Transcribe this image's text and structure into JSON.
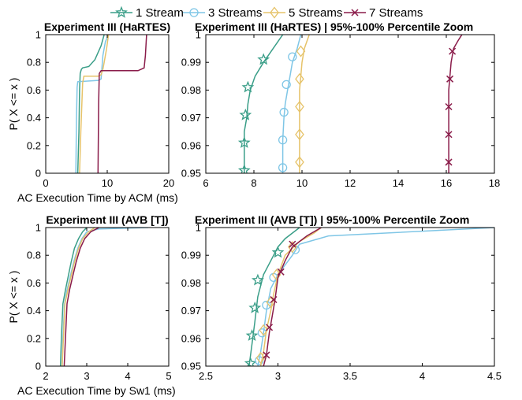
{
  "legend": {
    "entries": [
      {
        "name": "1 Stream",
        "color": "#3a9e88",
        "marker": "star"
      },
      {
        "name": "3 Streams",
        "color": "#7fc6e6",
        "marker": "circle"
      },
      {
        "name": "5 Streams",
        "color": "#e6c36a",
        "marker": "diamond"
      },
      {
        "name": "7 Streams",
        "color": "#8a1c4a",
        "marker": "x"
      }
    ]
  },
  "chart_data": [
    {
      "type": "line",
      "title": "Experiment III (HaRTES)",
      "xlabel": "AC Execution Time by ACM (ms)",
      "ylabel": "P( X <= x )",
      "xlim": [
        0,
        20
      ],
      "ylim": [
        0,
        1
      ],
      "xticks": [
        "0",
        "10",
        "20"
      ],
      "yticks": [
        "0",
        "0.2",
        "0.4",
        "0.6",
        "0.8",
        "1"
      ],
      "series": [
        {
          "name": "1 Stream",
          "x": [
            5.2,
            5.4,
            5.5,
            5.6,
            5.8,
            6.0,
            7.0,
            8.0,
            9.0,
            9.5
          ],
          "y": [
            0,
            0.3,
            0.6,
            0.72,
            0.75,
            0.76,
            0.77,
            0.82,
            0.92,
            1.0
          ]
        },
        {
          "name": "3 Streams",
          "x": [
            4.9,
            5.0,
            5.1,
            5.2,
            8.5,
            9.0,
            9.3,
            9.7,
            10.2
          ],
          "y": [
            0,
            0.4,
            0.62,
            0.66,
            0.67,
            0.68,
            0.85,
            0.95,
            1.0
          ]
        },
        {
          "name": "5 Streams",
          "x": [
            5.5,
            5.7,
            6.0,
            6.2,
            8.5,
            9.0,
            9.3,
            9.5,
            9.9,
            10.2
          ],
          "y": [
            0,
            0.3,
            0.65,
            0.7,
            0.7,
            0.71,
            0.75,
            0.8,
            0.9,
            1.0
          ]
        },
        {
          "name": "7 Streams",
          "x": [
            8.5,
            8.6,
            8.7,
            9.0,
            15.0,
            16.0,
            16.2,
            16.4
          ],
          "y": [
            0,
            0.5,
            0.72,
            0.74,
            0.74,
            0.76,
            0.85,
            1.0
          ]
        }
      ]
    },
    {
      "type": "line",
      "title": "Experiment III (HaRTES) | 95%-100% Percentile Zoom",
      "xlabel": "",
      "ylabel": "",
      "xlim": [
        6,
        18
      ],
      "ylim": [
        0.95,
        1
      ],
      "xticks": [
        "6",
        "8",
        "10",
        "12",
        "14",
        "16",
        "18"
      ],
      "yticks": [
        "0.95",
        "0.96",
        "0.97",
        "0.98",
        "0.99",
        "1"
      ],
      "series": [
        {
          "name": "1 Stream",
          "x": [
            7.6,
            7.6,
            7.6,
            7.6,
            7.7,
            7.75,
            7.85,
            8.05,
            8.4,
            8.8,
            9.2
          ],
          "y": [
            0.95,
            0.955,
            0.96,
            0.965,
            0.97,
            0.975,
            0.98,
            0.985,
            0.99,
            0.995,
            1.0
          ],
          "markers": [
            [
              7.6,
              0.951
            ],
            [
              7.6,
              0.961
            ],
            [
              7.65,
              0.971
            ],
            [
              7.75,
              0.981
            ],
            [
              8.4,
              0.991
            ]
          ]
        },
        {
          "name": "3 Streams",
          "x": [
            9.2,
            9.2,
            9.2,
            9.25,
            9.3,
            9.4,
            9.5,
            9.6,
            9.8,
            9.95
          ],
          "y": [
            0.95,
            0.955,
            0.962,
            0.97,
            0.975,
            0.98,
            0.985,
            0.99,
            0.995,
            1.0
          ],
          "markers": [
            [
              9.2,
              0.952
            ],
            [
              9.2,
              0.962
            ],
            [
              9.25,
              0.972
            ],
            [
              9.35,
              0.982
            ],
            [
              9.6,
              0.992
            ]
          ]
        },
        {
          "name": "5 Streams",
          "x": [
            9.9,
            9.9,
            9.9,
            9.9,
            9.9,
            9.95,
            10.0,
            10.1,
            10.3
          ],
          "y": [
            0.95,
            0.96,
            0.97,
            0.975,
            0.98,
            0.985,
            0.99,
            0.995,
            1.0
          ],
          "markers": [
            [
              9.9,
              0.954
            ],
            [
              9.9,
              0.964
            ],
            [
              9.9,
              0.974
            ],
            [
              9.9,
              0.984
            ],
            [
              9.95,
              0.994
            ]
          ]
        },
        {
          "name": "7 Streams",
          "x": [
            16.1,
            16.1,
            16.1,
            16.1,
            16.15,
            16.2,
            16.3,
            16.5,
            16.65
          ],
          "y": [
            0.95,
            0.96,
            0.97,
            0.98,
            0.985,
            0.99,
            0.995,
            0.998,
            1.0
          ],
          "markers": [
            [
              16.1,
              0.954
            ],
            [
              16.1,
              0.964
            ],
            [
              16.1,
              0.974
            ],
            [
              16.15,
              0.984
            ],
            [
              16.25,
              0.994
            ]
          ]
        }
      ]
    },
    {
      "type": "line",
      "title": "Experiment III (AVB [T])",
      "xlabel": "AC Execution Time by Sw1 (ms)",
      "ylabel": "P( X <= x )",
      "xlim": [
        2,
        5
      ],
      "ylim": [
        0,
        1
      ],
      "xticks": [
        "2",
        "3",
        "4",
        "5"
      ],
      "yticks": [
        "0",
        "0.2",
        "0.4",
        "0.6",
        "0.8",
        "1"
      ],
      "series": [
        {
          "name": "1 Stream",
          "x": [
            2.36,
            2.38,
            2.42,
            2.48,
            2.55,
            2.62,
            2.7,
            2.8,
            2.9,
            3.0
          ],
          "y": [
            0,
            0.2,
            0.45,
            0.55,
            0.65,
            0.75,
            0.85,
            0.92,
            0.97,
            1.0
          ]
        },
        {
          "name": "3 Streams",
          "x": [
            2.4,
            2.42,
            2.46,
            2.52,
            2.6,
            2.68,
            2.78,
            2.88,
            3.0,
            3.3,
            4.5
          ],
          "y": [
            0,
            0.2,
            0.45,
            0.55,
            0.65,
            0.75,
            0.85,
            0.92,
            0.97,
            0.99,
            1.0
          ]
        },
        {
          "name": "5 Streams",
          "x": [
            2.4,
            2.43,
            2.47,
            2.54,
            2.62,
            2.7,
            2.8,
            2.9,
            3.05,
            3.2
          ],
          "y": [
            0,
            0.2,
            0.45,
            0.55,
            0.65,
            0.75,
            0.85,
            0.92,
            0.97,
            1.0
          ]
        },
        {
          "name": "7 Streams",
          "x": [
            2.45,
            2.48,
            2.52,
            2.58,
            2.66,
            2.74,
            2.84,
            2.95,
            3.1,
            3.3
          ],
          "y": [
            0,
            0.2,
            0.45,
            0.55,
            0.65,
            0.75,
            0.85,
            0.92,
            0.97,
            1.0
          ]
        }
      ]
    },
    {
      "type": "line",
      "title": "Experiment III (AVB [T]) | 95%-100% Percentile Zoom",
      "xlabel": "",
      "ylabel": "",
      "xlim": [
        2.5,
        4.5
      ],
      "ylim": [
        0.95,
        1
      ],
      "xticks": [
        "2.5",
        "3",
        "3.5",
        "4",
        "4.5"
      ],
      "yticks": [
        "0.95",
        "0.96",
        "0.97",
        "0.98",
        "0.99",
        "1"
      ],
      "series": [
        {
          "name": "1 Stream",
          "x": [
            2.8,
            2.82,
            2.84,
            2.86,
            2.9,
            2.95,
            3.0,
            3.05,
            3.1,
            3.15
          ],
          "y": [
            0.95,
            0.958,
            0.966,
            0.975,
            0.983,
            0.988,
            0.993,
            0.996,
            0.998,
            1.0
          ],
          "markers": [
            [
              2.81,
              0.951
            ],
            [
              2.82,
              0.961
            ],
            [
              2.84,
              0.971
            ],
            [
              2.86,
              0.981
            ],
            [
              3.0,
              0.991
            ]
          ]
        },
        {
          "name": "3 Streams",
          "x": [
            2.86,
            2.88,
            2.9,
            2.92,
            2.95,
            3.0,
            3.1,
            3.15,
            3.35,
            4.5
          ],
          "y": [
            0.95,
            0.955,
            0.962,
            0.97,
            0.978,
            0.983,
            0.99,
            0.994,
            0.997,
            1.0
          ],
          "markers": [
            [
              2.87,
              0.952
            ],
            [
              2.89,
              0.962
            ],
            [
              2.92,
              0.972
            ],
            [
              2.97,
              0.982
            ],
            [
              3.12,
              0.992
            ]
          ]
        },
        {
          "name": "5 Streams",
          "x": [
            2.88,
            2.9,
            2.92,
            2.95,
            2.97,
            3.0,
            3.05,
            3.15,
            3.25,
            3.3
          ],
          "y": [
            0.95,
            0.955,
            0.963,
            0.97,
            0.976,
            0.983,
            0.99,
            0.995,
            0.998,
            1.0
          ],
          "markers": [
            [
              2.88,
              0.953
            ],
            [
              2.9,
              0.963
            ],
            [
              2.95,
              0.973
            ],
            [
              2.99,
              0.983
            ],
            [
              3.1,
              0.993
            ]
          ]
        },
        {
          "name": "7 Streams",
          "x": [
            2.9,
            2.92,
            2.94,
            2.96,
            2.98,
            3.0,
            3.05,
            3.1,
            3.2,
            3.3
          ],
          "y": [
            0.95,
            0.954,
            0.962,
            0.968,
            0.974,
            0.982,
            0.988,
            0.993,
            0.997,
            1.0
          ],
          "markers": [
            [
              2.92,
              0.954
            ],
            [
              2.94,
              0.964
            ],
            [
              2.97,
              0.974
            ],
            [
              3.02,
              0.984
            ],
            [
              3.1,
              0.994
            ]
          ]
        }
      ]
    }
  ]
}
